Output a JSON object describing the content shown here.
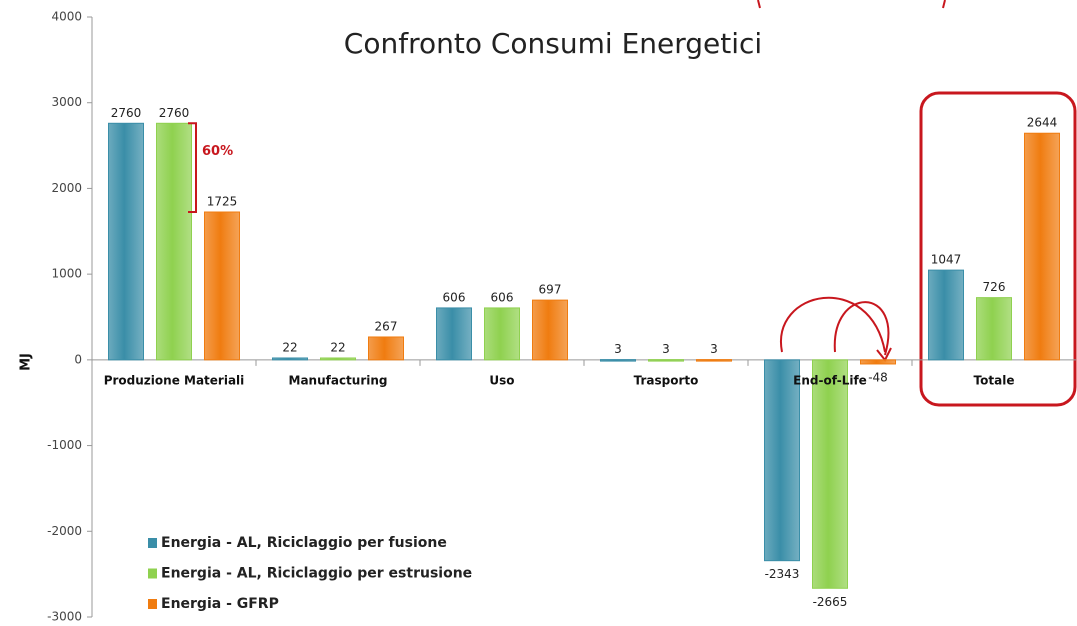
{
  "chart_data": {
    "type": "bar",
    "title": "Confronto Consumi Energetici",
    "y_axis_label": "MJ",
    "annotation": "60%",
    "categories": [
      "Produzione Materiali",
      "Manufacturing",
      "Uso",
      "Trasporto",
      "End-of-Life",
      "Totale"
    ],
    "series": [
      {
        "name": "Energia - AL, Riciclaggio per fusione",
        "color": "#3a8ea8",
        "values": [
          2760,
          22,
          606,
          3,
          -2343,
          1047
        ]
      },
      {
        "name": "Energia - AL, Riciclaggio per estrusione",
        "color": "#8fd14f",
        "values": [
          2760,
          22,
          606,
          3,
          -2665,
          726
        ]
      },
      {
        "name": "Energia - GFRP",
        "color": "#f07c10",
        "values": [
          1725,
          267,
          697,
          3,
          -48,
          2644
        ]
      }
    ],
    "ylim": [
      -3000,
      4000
    ],
    "yticks": [
      -3000,
      -2000,
      -1000,
      0,
      1000,
      2000,
      3000,
      4000
    ],
    "grid": false,
    "legend": "lower left"
  }
}
